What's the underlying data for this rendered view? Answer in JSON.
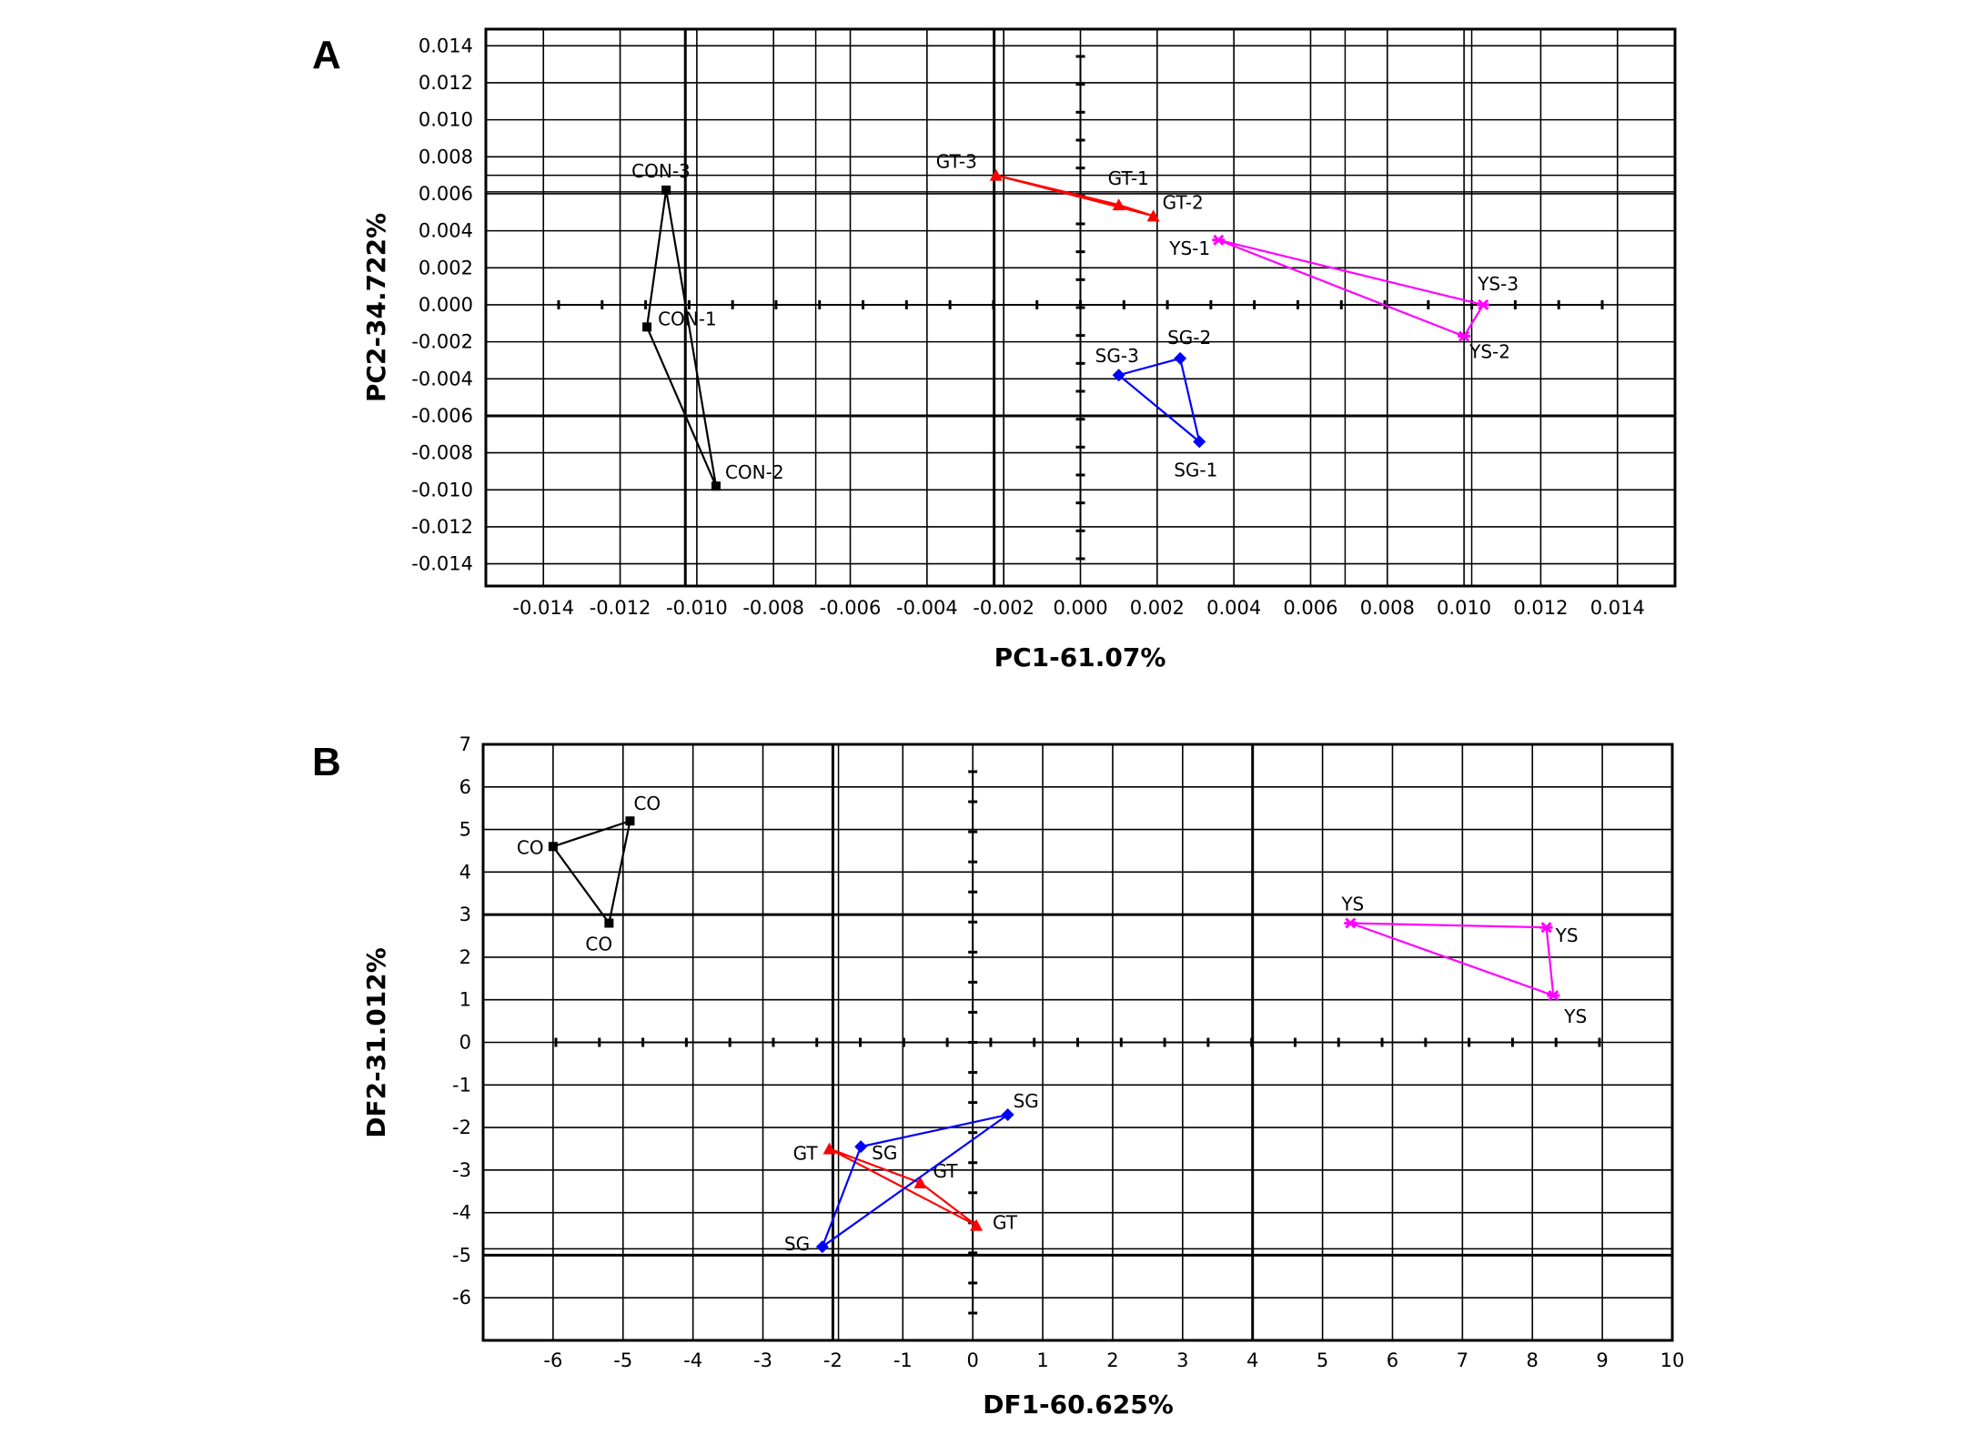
{
  "chart_data": [
    {
      "panel": "A",
      "type": "scatter",
      "xlabel": "PC1-61.07%",
      "ylabel": "PC2-34.722%",
      "xlim": [
        -0.0155,
        0.0155
      ],
      "ylim": [
        -0.0152,
        0.0149
      ],
      "xticks": [
        "-0.014",
        "-0.012",
        "-0.010",
        "-0.008",
        "-0.006",
        "-0.004",
        "-0.002",
        "0.000",
        "0.002",
        "0.004",
        "0.006",
        "0.008",
        "0.010",
        "0.012",
        "0.014"
      ],
      "yticks": [
        "0.014",
        "0.012",
        "0.010",
        "0.008",
        "0.006",
        "0.004",
        "0.002",
        "0.000",
        "-0.002",
        "-0.004",
        "-0.006",
        "-0.008",
        "-0.010",
        "-0.012",
        "-0.014"
      ],
      "series": [
        {
          "name": "CON",
          "color": "#000000",
          "marker": "square",
          "points": [
            {
              "label": "CON-1",
              "x": -0.0113,
              "y": -0.0012
            },
            {
              "label": "CON-2",
              "x": -0.0095,
              "y": -0.0098
            },
            {
              "label": "CON-3",
              "x": -0.0108,
              "y": 0.0062
            }
          ]
        },
        {
          "name": "GT",
          "color": "#ff0000",
          "marker": "triangle",
          "points": [
            {
              "label": "GT-1",
              "x": 0.001,
              "y": 0.0054
            },
            {
              "label": "GT-2",
              "x": 0.0019,
              "y": 0.0048
            },
            {
              "label": "GT-3",
              "x": -0.0022,
              "y": 0.007
            }
          ]
        },
        {
          "name": "YS",
          "color": "#ff00ff",
          "marker": "star",
          "points": [
            {
              "label": "YS-1",
              "x": 0.0036,
              "y": 0.0035
            },
            {
              "label": "YS-2",
              "x": 0.01,
              "y": -0.0017
            },
            {
              "label": "YS-3",
              "x": 0.0105,
              "y": 0.0
            }
          ]
        },
        {
          "name": "SG",
          "color": "#0000ff",
          "marker": "diamond",
          "points": [
            {
              "label": "SG-1",
              "x": 0.0031,
              "y": -0.0074
            },
            {
              "label": "SG-2",
              "x": 0.0026,
              "y": -0.0029
            },
            {
              "label": "SG-3",
              "x": 0.001,
              "y": -0.0038
            }
          ]
        }
      ]
    },
    {
      "panel": "B",
      "type": "scatter",
      "xlabel": "DF1-60.625%",
      "ylabel": "DF2-31.012%",
      "xlim": [
        -7,
        10
      ],
      "ylim": [
        -7,
        7
      ],
      "xticks": [
        "-6",
        "-5",
        "-4",
        "-3",
        "-2",
        "-1",
        "0",
        "1",
        "2",
        "3",
        "4",
        "5",
        "6",
        "7",
        "8",
        "9",
        "10"
      ],
      "yticks": [
        "7",
        "6",
        "5",
        "4",
        "3",
        "2",
        "1",
        "0",
        "-1",
        "-2",
        "-3",
        "-4",
        "-5",
        "-6"
      ],
      "series": [
        {
          "name": "CO",
          "color": "#000000",
          "marker": "square",
          "points": [
            {
              "label": "CO",
              "x": -6.0,
              "y": 4.6
            },
            {
              "label": "CO",
              "x": -4.9,
              "y": 5.2
            },
            {
              "label": "CO",
              "x": -5.2,
              "y": 2.8
            }
          ]
        },
        {
          "name": "GT",
          "color": "#ff0000",
          "marker": "triangle",
          "points": [
            {
              "label": "GT",
              "x": -2.05,
              "y": -2.5
            },
            {
              "label": "GT",
              "x": 0.05,
              "y": -4.3
            },
            {
              "label": "GT",
              "x": -0.75,
              "y": -3.3
            }
          ]
        },
        {
          "name": "YS",
          "color": "#ff00ff",
          "marker": "star",
          "points": [
            {
              "label": "YS",
              "x": 5.4,
              "y": 2.8
            },
            {
              "label": "YS",
              "x": 8.2,
              "y": 2.7
            },
            {
              "label": "YS",
              "x": 8.3,
              "y": 1.1
            }
          ]
        },
        {
          "name": "SG",
          "color": "#0000ff",
          "marker": "diamond",
          "points": [
            {
              "label": "SG",
              "x": 0.5,
              "y": -1.7
            },
            {
              "label": "SG",
              "x": -1.6,
              "y": -2.45
            },
            {
              "label": "SG",
              "x": -2.15,
              "y": -4.8
            }
          ]
        }
      ]
    }
  ]
}
